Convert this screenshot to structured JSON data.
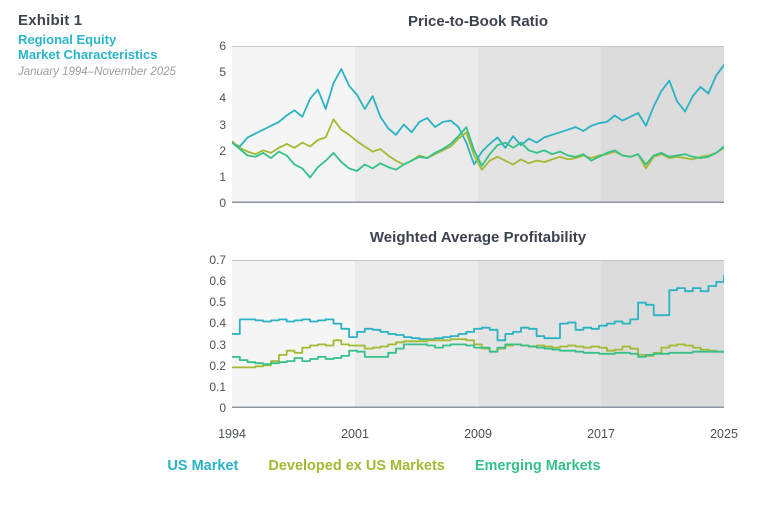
{
  "header": {
    "exhibit_label": "Exhibit 1",
    "title_line1": "Regional Equity",
    "title_line2": "Market Characteristics",
    "subtitle": "January 1994–November 2025",
    "title_color": "#2ab5c8"
  },
  "colors": {
    "us_market": "#2ab2c5",
    "developed_ex_us": "#a3ba33",
    "emerging": "#35c189",
    "band_colors": [
      "#f4f5f4",
      "#eaebea",
      "#e2e3e2",
      "#dbdcdb"
    ],
    "plot_top_border": "#c3c7c4",
    "axis_line": "#8f959c",
    "tick_label": "#4c5156",
    "chart_title": "#3d434e"
  },
  "legend": {
    "items": [
      {
        "label": "US Market",
        "color": "#2ab2c5"
      },
      {
        "label": "Developed ex US Markets",
        "color": "#a3ba33"
      },
      {
        "label": "Emerging Markets",
        "color": "#35c189"
      }
    ],
    "position": "bottom-center"
  },
  "chart_data": [
    {
      "type": "line",
      "title": "Price-to-Book Ratio",
      "xlabel": "",
      "ylabel": "",
      "ylim": [
        0,
        6
      ],
      "y_ticks": [
        "6",
        "5",
        "4",
        "3",
        "2",
        "1",
        "0"
      ],
      "x_tick_labels": [
        "1994",
        "2001",
        "2009",
        "2017",
        "2025"
      ],
      "x_range": "January 1994 – November 2025",
      "grid": false,
      "background_bands": 4,
      "interpolation": "linear",
      "series": [
        {
          "name": "US Market",
          "color": "#2ab2c5",
          "values": [
            2.3,
            2.15,
            2.5,
            2.65,
            2.8,
            2.95,
            3.1,
            3.35,
            3.55,
            3.3,
            4.0,
            4.35,
            3.6,
            4.6,
            5.15,
            4.5,
            4.15,
            3.6,
            4.1,
            3.3,
            2.85,
            2.6,
            3.0,
            2.7,
            3.1,
            3.25,
            2.9,
            3.1,
            3.15,
            2.9,
            2.3,
            1.45,
            1.95,
            2.25,
            2.5,
            2.1,
            2.55,
            2.2,
            2.45,
            2.3,
            2.5,
            2.6,
            2.7,
            2.8,
            2.9,
            2.75,
            2.95,
            3.05,
            3.1,
            3.35,
            3.15,
            3.3,
            3.45,
            2.95,
            3.7,
            4.3,
            4.7,
            3.9,
            3.5,
            4.1,
            4.45,
            4.2,
            4.9,
            5.3
          ]
        },
        {
          "name": "Developed ex US Markets",
          "color": "#a3ba33",
          "values": [
            2.35,
            2.1,
            1.95,
            1.85,
            2.0,
            1.9,
            2.1,
            2.25,
            2.1,
            2.3,
            2.15,
            2.4,
            2.5,
            3.2,
            2.8,
            2.6,
            2.35,
            2.15,
            1.95,
            2.05,
            1.8,
            1.6,
            1.45,
            1.6,
            1.8,
            1.7,
            1.85,
            2.0,
            2.15,
            2.45,
            2.7,
            1.8,
            1.25,
            1.6,
            1.75,
            1.6,
            1.45,
            1.65,
            1.5,
            1.6,
            1.55,
            1.65,
            1.75,
            1.65,
            1.7,
            1.8,
            1.7,
            1.8,
            1.85,
            1.95,
            1.8,
            1.75,
            1.85,
            1.3,
            1.75,
            1.85,
            1.7,
            1.75,
            1.7,
            1.65,
            1.75,
            1.8,
            1.9,
            2.1
          ]
        },
        {
          "name": "Emerging Markets",
          "color": "#35c189",
          "values": [
            2.3,
            2.05,
            1.8,
            1.75,
            1.9,
            1.7,
            1.95,
            1.8,
            1.45,
            1.3,
            0.95,
            1.35,
            1.6,
            1.9,
            1.55,
            1.3,
            1.2,
            1.45,
            1.3,
            1.5,
            1.35,
            1.25,
            1.45,
            1.6,
            1.75,
            1.7,
            1.9,
            2.05,
            2.25,
            2.55,
            2.9,
            2.0,
            1.4,
            1.85,
            2.2,
            2.3,
            2.1,
            2.3,
            2.0,
            1.9,
            2.0,
            1.85,
            1.95,
            1.8,
            1.75,
            1.85,
            1.6,
            1.75,
            1.9,
            2.0,
            1.8,
            1.75,
            1.85,
            1.45,
            1.8,
            1.9,
            1.75,
            1.8,
            1.85,
            1.75,
            1.7,
            1.75,
            1.9,
            2.15
          ]
        }
      ]
    },
    {
      "type": "line",
      "title": "Weighted Average Profitability",
      "xlabel": "",
      "ylabel": "",
      "ylim": [
        0,
        0.7
      ],
      "y_ticks": [
        "0.7",
        "0.6",
        "0.5",
        "0.4",
        "0.3",
        "0.2",
        "0.1",
        "0"
      ],
      "x_tick_labels": [
        "1994",
        "2001",
        "2009",
        "2017",
        "2025"
      ],
      "x_range": "January 1994 – November 2025",
      "grid": false,
      "background_bands": 4,
      "interpolation": "step",
      "series": [
        {
          "name": "US Market",
          "color": "#2ab2c5",
          "values": [
            0.35,
            0.42,
            0.42,
            0.415,
            0.41,
            0.415,
            0.42,
            0.41,
            0.415,
            0.42,
            0.41,
            0.415,
            0.42,
            0.4,
            0.375,
            0.335,
            0.36,
            0.375,
            0.37,
            0.36,
            0.35,
            0.345,
            0.335,
            0.33,
            0.325,
            0.325,
            0.33,
            0.335,
            0.34,
            0.35,
            0.36,
            0.375,
            0.38,
            0.37,
            0.32,
            0.35,
            0.36,
            0.38,
            0.375,
            0.34,
            0.33,
            0.33,
            0.4,
            0.405,
            0.37,
            0.38,
            0.375,
            0.39,
            0.4,
            0.41,
            0.4,
            0.42,
            0.5,
            0.49,
            0.44,
            0.44,
            0.56,
            0.57,
            0.555,
            0.57,
            0.555,
            0.58,
            0.6,
            0.63
          ]
        },
        {
          "name": "Developed ex US Markets",
          "color": "#a3ba33",
          "values": [
            0.19,
            0.19,
            0.19,
            0.195,
            0.2,
            0.22,
            0.25,
            0.27,
            0.26,
            0.285,
            0.295,
            0.3,
            0.295,
            0.32,
            0.3,
            0.295,
            0.295,
            0.28,
            0.285,
            0.29,
            0.3,
            0.31,
            0.315,
            0.315,
            0.315,
            0.32,
            0.32,
            0.32,
            0.325,
            0.325,
            0.32,
            0.3,
            0.28,
            0.265,
            0.28,
            0.295,
            0.3,
            0.295,
            0.29,
            0.295,
            0.29,
            0.285,
            0.29,
            0.295,
            0.29,
            0.285,
            0.29,
            0.285,
            0.27,
            0.275,
            0.29,
            0.28,
            0.25,
            0.245,
            0.26,
            0.285,
            0.295,
            0.3,
            0.295,
            0.285,
            0.275,
            0.27,
            0.265,
            0.26
          ]
        },
        {
          "name": "Emerging Markets",
          "color": "#35c189",
          "values": [
            0.24,
            0.225,
            0.215,
            0.21,
            0.205,
            0.21,
            0.215,
            0.22,
            0.235,
            0.22,
            0.23,
            0.24,
            0.23,
            0.235,
            0.245,
            0.27,
            0.265,
            0.24,
            0.24,
            0.24,
            0.26,
            0.28,
            0.3,
            0.3,
            0.3,
            0.295,
            0.285,
            0.295,
            0.3,
            0.3,
            0.295,
            0.285,
            0.285,
            0.265,
            0.285,
            0.3,
            0.3,
            0.295,
            0.29,
            0.285,
            0.28,
            0.275,
            0.27,
            0.27,
            0.265,
            0.26,
            0.26,
            0.255,
            0.255,
            0.26,
            0.26,
            0.255,
            0.24,
            0.25,
            0.255,
            0.255,
            0.26,
            0.26,
            0.26,
            0.265,
            0.265,
            0.265,
            0.265,
            0.265
          ]
        }
      ]
    }
  ]
}
